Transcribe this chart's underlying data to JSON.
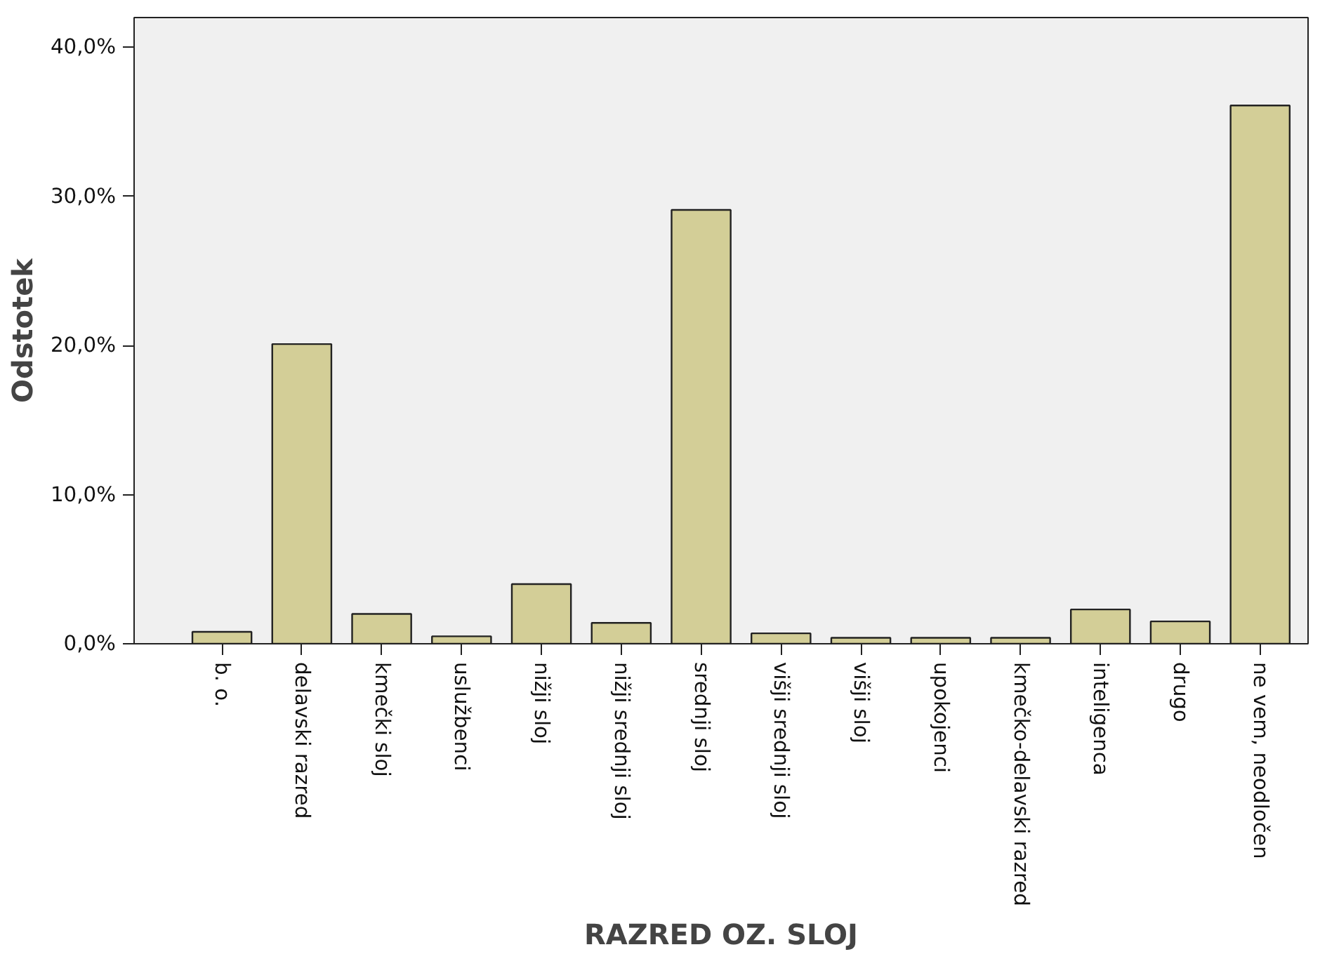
{
  "chart_data": {
    "type": "bar",
    "xlabel": "RAZRED OZ. SLOJ",
    "ylabel": "Odstotek",
    "categories": [
      "b. o.",
      "delavski razred",
      "kmečki sloj",
      "uslužbenci",
      "nižji sloj",
      "nižji srednji sloj",
      "srednji sloj",
      "višji srednji sloj",
      "višji sloj",
      "upokojenci",
      "kmečko-delavski razred",
      "inteligenca",
      "drugo",
      "ne vem, neodločen"
    ],
    "values": [
      0.8,
      20.1,
      2.0,
      0.5,
      4.0,
      1.4,
      29.1,
      0.7,
      0.4,
      0.4,
      0.4,
      2.3,
      1.5,
      36.1
    ],
    "color": "#d3ce97",
    "ylim": [
      0,
      42
    ],
    "yticks": [
      {
        "value": 0,
        "label": "0,0%"
      },
      {
        "value": 10,
        "label": "10,0%"
      },
      {
        "value": 20,
        "label": "20,0%"
      },
      {
        "value": 30,
        "label": "30,0%"
      },
      {
        "value": 40,
        "label": "40,0%"
      }
    ],
    "grid": false
  }
}
